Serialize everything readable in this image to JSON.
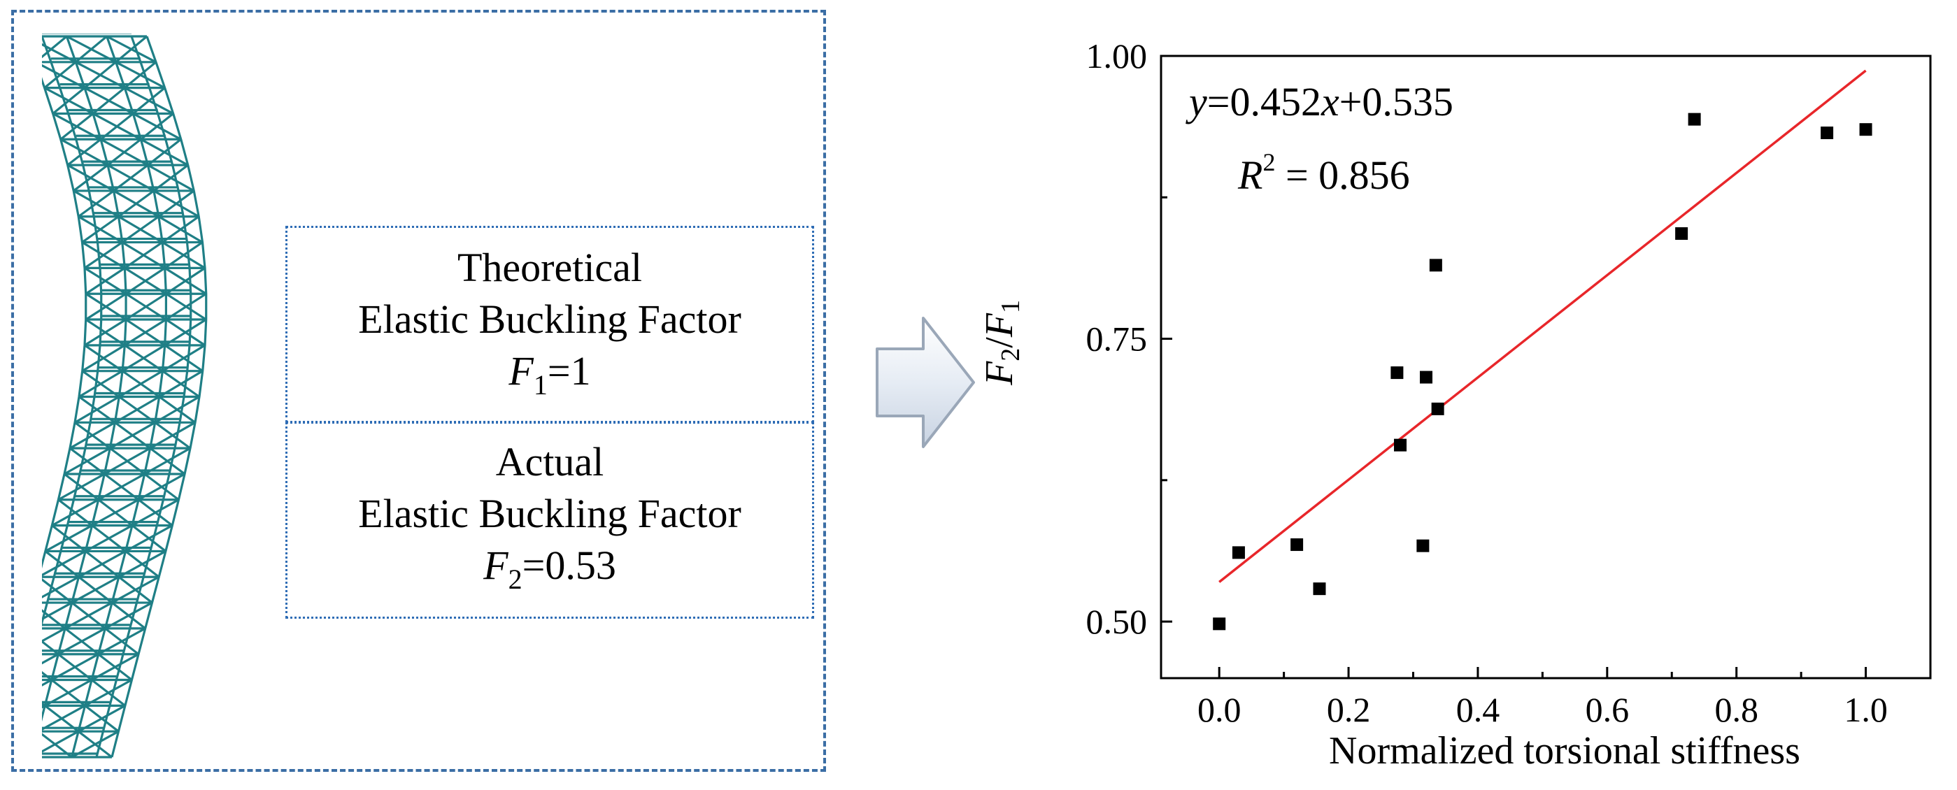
{
  "left_panel": {
    "theoretical": {
      "line1": "Theoretical",
      "line2": "Elastic Buckling Factor",
      "symbol": "F",
      "subscript": "1",
      "value": "=1"
    },
    "actual": {
      "line1": "Actual",
      "line2": "Elastic Buckling Factor",
      "symbol": "F",
      "subscript": "2",
      "value": "=0.53"
    },
    "truss_color": "#1f7f86",
    "frame_color": "#3b6ea5"
  },
  "arrow": {
    "icon": "hollow-right-arrow-icon"
  },
  "chart_data": {
    "type": "scatter",
    "xlabel": "Normalized torsional stiffness",
    "ylabel": {
      "symbol1": "F",
      "sub1": "2",
      "slash": "/",
      "symbol2": "F",
      "sub2": "1"
    },
    "xlim": [
      -0.09,
      1.1
    ],
    "ylim": [
      0.45,
      1.0
    ],
    "x_ticks": [
      0.0,
      0.2,
      0.4,
      0.6,
      0.8,
      1.0
    ],
    "x_tick_labels": [
      "0.0",
      "0.2",
      "0.4",
      "0.6",
      "0.8",
      "1.0"
    ],
    "y_ticks": [
      0.5,
      0.75,
      1.0
    ],
    "y_tick_labels": [
      "0.50",
      "0.75",
      "1.00"
    ],
    "y_minor_ticks": [
      0.625,
      0.875
    ],
    "grid": false,
    "points": [
      [
        0.0,
        0.498
      ],
      [
        0.03,
        0.561
      ],
      [
        0.12,
        0.568
      ],
      [
        0.155,
        0.529
      ],
      [
        0.275,
        0.72
      ],
      [
        0.28,
        0.656
      ],
      [
        0.315,
        0.567
      ],
      [
        0.32,
        0.716
      ],
      [
        0.335,
        0.815
      ],
      [
        0.338,
        0.688
      ],
      [
        0.715,
        0.843
      ],
      [
        0.735,
        0.944
      ],
      [
        0.94,
        0.932
      ],
      [
        1.0,
        0.935
      ]
    ],
    "fit": {
      "slope": 0.452,
      "intercept": 0.535,
      "x_range": [
        0.0,
        1.0
      ],
      "color": "#e8262a"
    },
    "annotation": {
      "eq_y": "y",
      "eq_mid": "=0.452",
      "eq_x": "x",
      "eq_end": "+0.535",
      "r2_label": "R",
      "r2_sup": "2",
      "r2_value": " = 0.856"
    },
    "marker_color": "#000000"
  }
}
